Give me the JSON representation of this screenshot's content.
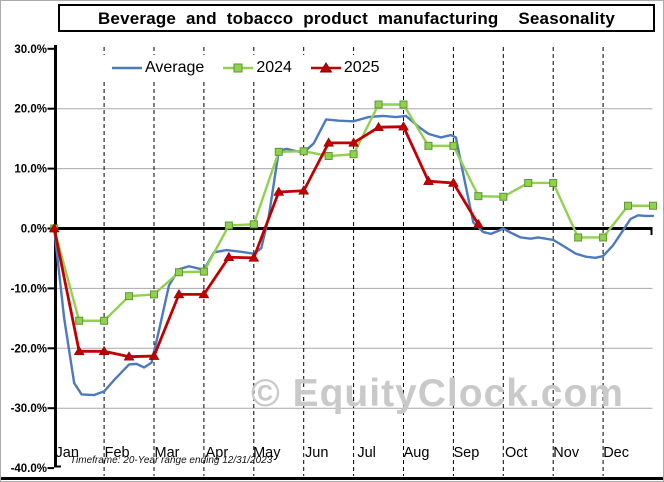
{
  "title": "Beverage and tobacco product manufacturing  Seasonality",
  "watermark": "© EquityClock.com",
  "footnote": "Timeframe: 20-Year range ending 12/31/2023",
  "colors": {
    "average": "#4d79bd",
    "year2024": "#92d050",
    "year2024_edge": "#5d9732",
    "year2025": "#c00000",
    "gridline": "#a8a8a8",
    "watermark": "#c9c9c9"
  },
  "legend": {
    "items": [
      {
        "label": "Average",
        "color": "#4d79bd",
        "marker": "line"
      },
      {
        "label": "2024",
        "color": "#92d050",
        "marker": "square"
      },
      {
        "label": "2025",
        "color": "#c00000",
        "marker": "triangle"
      }
    ]
  },
  "chart_data": {
    "type": "line",
    "title": "Beverage and tobacco product manufacturing  Seasonality",
    "footnote": "Timeframe: 20-Year range ending 12/31/2023",
    "legend_position": "top",
    "months": [
      "Jan",
      "Feb",
      "Mar",
      "Apr",
      "May",
      "Jun",
      "Jul",
      "Aug",
      "Sep",
      "Oct",
      "Nov",
      "Dec"
    ],
    "ytick_labels": [
      "30.0%",
      "20.0%",
      "10.0%",
      "0.0%",
      "-10.0%",
      "-20.0%",
      "-30.0%",
      "-40.0%"
    ],
    "ytick_values": [
      30,
      20,
      10,
      0,
      -10,
      -20,
      -30,
      -40
    ],
    "ylim": [
      -40,
      30
    ],
    "y_unit": "%",
    "grid": {
      "horizontal_gray": true,
      "vertical_dashed_monthly": true,
      "zero_line_bold": true
    },
    "series": [
      {
        "name": "Average",
        "color": "#4d79bd",
        "marker": "none",
        "width": 2.4,
        "x": [
          0,
          0.2,
          0.4,
          0.55,
          0.8,
          1.0,
          1.2,
          1.5,
          1.65,
          1.8,
          1.95,
          2.1,
          2.3,
          2.5,
          2.7,
          3.0,
          3.2,
          3.45,
          3.75,
          4.0,
          4.15,
          4.3,
          4.5,
          4.65,
          4.85,
          5.0,
          5.2,
          5.45,
          5.7,
          6.0,
          6.3,
          6.6,
          6.85,
          7.05,
          7.3,
          7.5,
          7.75,
          7.95,
          8.05,
          8.2,
          8.4,
          8.6,
          8.75,
          8.9,
          9.0,
          9.15,
          9.35,
          9.55,
          9.7,
          9.85,
          10.0,
          10.2,
          10.45,
          10.65,
          10.85,
          11.0,
          11.2,
          11.4,
          11.55,
          11.7,
          11.85,
          12.0
        ],
        "values": [
          0,
          -15.0,
          -25.8,
          -27.7,
          -27.8,
          -27.2,
          -25.3,
          -22.7,
          -22.6,
          -23.2,
          -22.4,
          -17.0,
          -9.5,
          -6.8,
          -6.3,
          -6.9,
          -4.0,
          -3.6,
          -3.9,
          -4.2,
          -3.3,
          2.0,
          12.9,
          13.3,
          12.9,
          12.7,
          14.2,
          18.2,
          18.0,
          17.9,
          18.6,
          18.8,
          18.6,
          18.8,
          17.0,
          15.8,
          15.2,
          15.6,
          15.2,
          9.0,
          1.0,
          -0.6,
          -0.9,
          -0.4,
          0.0,
          -0.7,
          -1.5,
          -1.7,
          -1.5,
          -1.7,
          -1.9,
          -2.9,
          -4.2,
          -4.7,
          -4.9,
          -4.6,
          -2.8,
          -0.3,
          1.6,
          2.2,
          2.1,
          2.1
        ]
      },
      {
        "name": "2024",
        "color": "#92d050",
        "marker": "square",
        "marker_edge": "#5d9732",
        "width": 2.4,
        "x": [
          0,
          0.5,
          1,
          1.5,
          2,
          2.5,
          3,
          3.5,
          4,
          4.5,
          5,
          5.5,
          6,
          6.5,
          7,
          7.5,
          8,
          8.5,
          9,
          9.5,
          10,
          10.5,
          11,
          11.5,
          12
        ],
        "values": [
          0.0,
          -15.4,
          -15.4,
          -11.3,
          -11.0,
          -7.3,
          -7.2,
          0.5,
          0.7,
          12.8,
          12.9,
          12.1,
          12.4,
          20.7,
          20.7,
          13.8,
          13.8,
          5.4,
          5.3,
          7.6,
          7.6,
          -1.5,
          -1.5,
          3.8,
          3.8
        ]
      },
      {
        "name": "2025",
        "color": "#c00000",
        "marker": "triangle",
        "marker_edge": "#7f0000",
        "width": 2.8,
        "x": [
          0,
          0.5,
          1,
          1.5,
          2,
          2.5,
          3,
          3.5,
          4,
          4.5,
          5,
          5.5,
          6,
          6.5,
          7,
          7.5,
          8,
          8.5
        ],
        "values": [
          0.0,
          -20.5,
          -20.5,
          -21.4,
          -21.3,
          -11.0,
          -11.0,
          -4.8,
          -4.9,
          6.1,
          6.3,
          14.3,
          14.3,
          16.9,
          17.0,
          7.9,
          7.6,
          0.7
        ]
      }
    ]
  }
}
